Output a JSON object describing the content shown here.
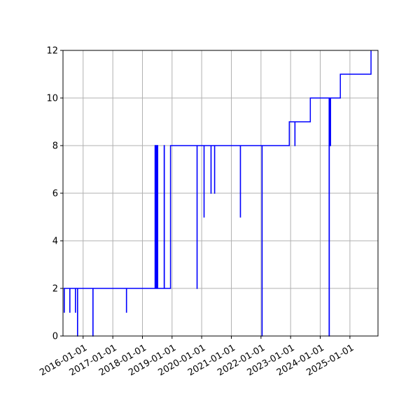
{
  "chart_data": {
    "type": "line",
    "step": "post",
    "title": "",
    "xlabel": "",
    "ylabel": "",
    "x_type": "date",
    "xlim": [
      "2015-04-28",
      "2025-12-13"
    ],
    "ylim": [
      0,
      12
    ],
    "grid": true,
    "legend": "none",
    "color": "#0000ff",
    "x_ticks": [
      "2016-01-01",
      "2017-01-01",
      "2018-01-01",
      "2019-01-01",
      "2020-01-01",
      "2021-01-01",
      "2022-01-01",
      "2023-01-01",
      "2024-01-01",
      "2025-01-01"
    ],
    "y_ticks": [
      0,
      2,
      4,
      6,
      8,
      10,
      12
    ],
    "series": [
      {
        "points": [
          [
            "2015-05-05",
            2
          ],
          [
            "2015-05-13",
            1
          ],
          [
            "2015-05-14",
            2
          ],
          [
            "2015-07-21",
            1
          ],
          [
            "2015-07-22",
            2
          ],
          [
            "2015-09-28",
            1
          ],
          [
            "2015-09-29",
            2
          ],
          [
            "2015-10-24",
            0
          ],
          [
            "2015-10-25",
            2
          ],
          [
            "2016-05-01",
            0
          ],
          [
            "2016-05-02",
            2
          ],
          [
            "2017-06-18",
            1
          ],
          [
            "2017-06-19",
            2
          ],
          [
            "2018-06-06",
            8
          ],
          [
            "2018-06-08",
            2
          ],
          [
            "2018-06-12",
            8
          ],
          [
            "2018-06-15",
            2
          ],
          [
            "2018-06-20",
            8
          ],
          [
            "2018-06-24",
            2
          ],
          [
            "2018-06-28",
            8
          ],
          [
            "2018-07-02",
            2
          ],
          [
            "2018-07-05",
            8
          ],
          [
            "2018-07-08",
            2
          ],
          [
            "2018-09-26",
            8
          ],
          [
            "2018-09-28",
            2
          ],
          [
            "2018-12-13",
            8
          ],
          [
            "2019-11-05",
            2
          ],
          [
            "2019-11-06",
            8
          ],
          [
            "2020-01-30",
            5
          ],
          [
            "2020-01-31",
            8
          ],
          [
            "2020-04-25",
            6
          ],
          [
            "2020-04-26",
            8
          ],
          [
            "2020-06-08",
            6
          ],
          [
            "2020-06-09",
            8
          ],
          [
            "2021-04-22",
            5
          ],
          [
            "2021-04-23",
            8
          ],
          [
            "2022-01-14",
            0
          ],
          [
            "2022-01-15",
            8
          ],
          [
            "2022-12-16",
            9
          ],
          [
            "2023-02-23",
            8
          ],
          [
            "2023-02-24",
            9
          ],
          [
            "2023-09-01",
            10
          ],
          [
            "2024-04-20",
            0
          ],
          [
            "2024-04-22",
            10
          ],
          [
            "2024-04-28",
            8
          ],
          [
            "2024-04-30",
            10
          ],
          [
            "2024-05-05",
            8
          ],
          [
            "2024-05-07",
            10
          ],
          [
            "2024-09-05",
            11
          ],
          [
            "2025-09-18",
            12
          ]
        ]
      }
    ]
  }
}
